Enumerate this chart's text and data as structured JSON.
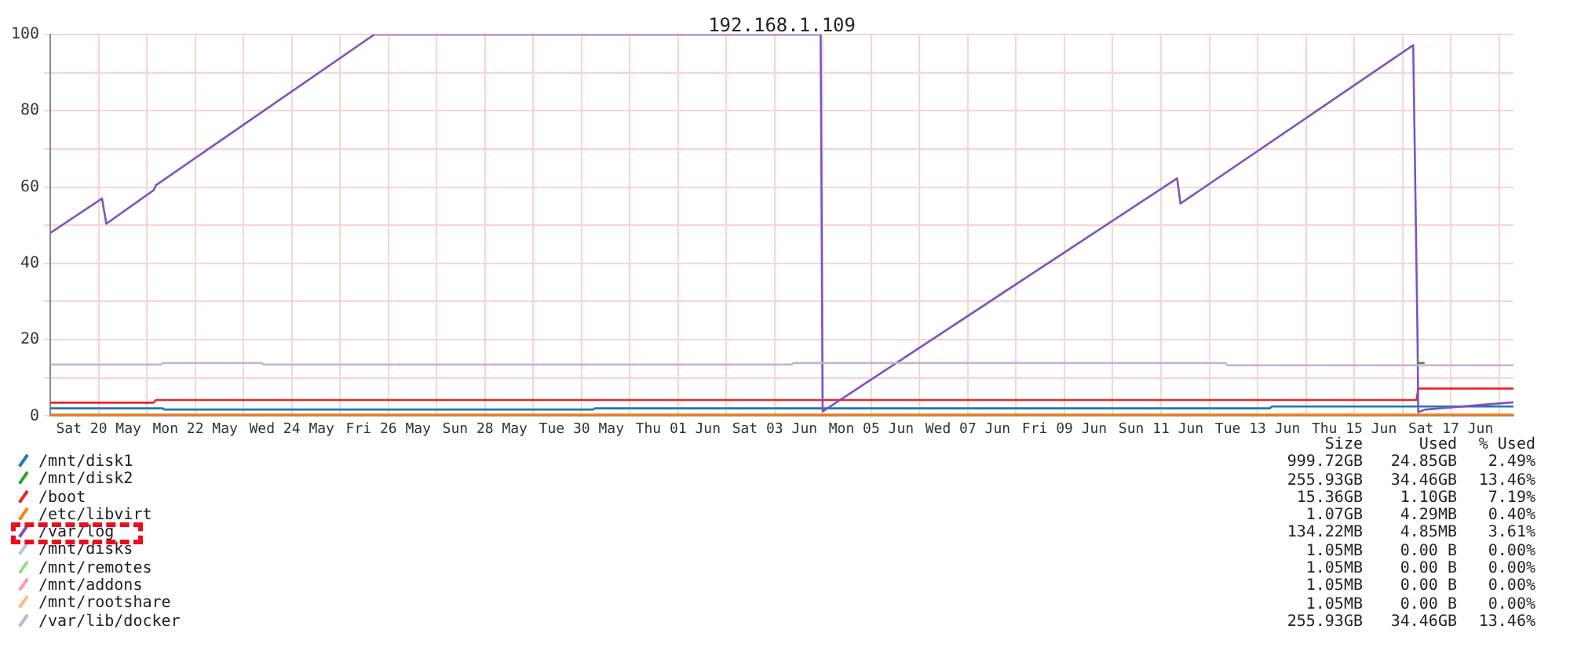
{
  "chart_data": {
    "type": "line",
    "title": "192.168.1.109",
    "xlim": [
      "--05-19",
      "--06-18T07:10"
    ],
    "ylim": [
      0,
      100
    ],
    "yticks": [
      0,
      {
        "value": 10,
        "label": null
      },
      20,
      {
        "value": 30,
        "label": null
      },
      40,
      {
        "value": 50,
        "label": null
      },
      60,
      {
        "value": 70,
        "label": null
      },
      80,
      {
        "value": 90,
        "label": null
      },
      100
    ],
    "xticks": [
      {
        "value": "--05-20",
        "label": "Sat 20 May"
      },
      {
        "value": "--05-21",
        "label": null
      },
      {
        "value": "--05-22",
        "label": "Mon 22 May"
      },
      {
        "value": "--05-23",
        "label": null
      },
      {
        "value": "--05-24",
        "label": "Wed 24 May"
      },
      {
        "value": "--05-25",
        "label": null
      },
      {
        "value": "--05-26",
        "label": "Fri 26 May"
      },
      {
        "value": "--05-27",
        "label": null
      },
      {
        "value": "--05-28",
        "label": "Sun 28 May"
      },
      {
        "value": "--05-29",
        "label": null
      },
      {
        "value": "--05-30",
        "label": "Tue 30 May"
      },
      {
        "value": "--05-31",
        "label": null
      },
      {
        "value": "--06-01",
        "label": "Thu 01 Jun"
      },
      {
        "value": "--06-02",
        "label": null
      },
      {
        "value": "--06-03",
        "label": "Sat 03 Jun"
      },
      {
        "value": "--06-04",
        "label": null
      },
      {
        "value": "--06-05",
        "label": "Mon 05 Jun"
      },
      {
        "value": "--06-06",
        "label": null
      },
      {
        "value": "--06-07",
        "label": "Wed 07 Jun"
      },
      {
        "value": "--06-08",
        "label": null
      },
      {
        "value": "--06-09",
        "label": "Fri 09 Jun"
      },
      {
        "value": "--06-10",
        "label": null
      },
      {
        "value": "--06-11",
        "label": "Sun 11 Jun"
      },
      {
        "value": "--06-12",
        "label": null
      },
      {
        "value": "--06-13",
        "label": "Tue 13 Jun"
      },
      {
        "value": "--06-14",
        "label": null
      },
      {
        "value": "--06-15",
        "label": "Thu 15 Jun"
      },
      {
        "value": "--06-16",
        "label": null
      },
      {
        "value": "--06-17",
        "label": "Sat 17 Jun"
      },
      {
        "value": "--06-18",
        "label": null
      }
    ],
    "grid": true,
    "legend": "bottom",
    "marker": "none",
    "line_style": "solid",
    "series": [
      {
        "name": "/mnt/disk1",
        "color": "#1f77b4",
        "x": [
          "--05-19",
          "--05-21T08:00",
          "--05-21T08:30",
          "--05-30T05:50",
          "--05-30T06:30",
          "--06-13T06:10",
          "--06-13T07:00",
          "--06-18T07:10"
        ],
        "values": [
          2.0,
          2.0,
          1.7,
          1.7,
          2.0,
          2.0,
          2.5,
          2.5
        ]
      },
      {
        "name": "/mnt/disk2",
        "color": "#2ca02c",
        "x": [
          "--06-16T07:30",
          "--06-16T11:00"
        ],
        "values": [
          13.9,
          13.9
        ]
      },
      {
        "name": "/boot",
        "color": "#e8262a",
        "x": [
          "--05-19",
          "--05-21T03:20",
          "--05-21T04:30",
          "--06-16T07:00",
          "--06-16T07:50",
          "--06-18T07:10"
        ],
        "values": [
          3.5,
          3.5,
          4.2,
          4.2,
          7.2,
          7.2
        ]
      },
      {
        "name": "/etc/libvirt",
        "color": "#ff7f0e",
        "x": [
          "--05-19",
          "--06-18T07:10"
        ],
        "values": [
          0.4,
          0.4
        ]
      },
      {
        "name": "/var/log",
        "color": "#7f52bf",
        "x": [
          "--05-19",
          "--05-20T01:40",
          "--05-20T03:50",
          "--05-21T03:20",
          "--05-21T04:30",
          "--05-25T17:00",
          "--06-03T22:50",
          "--06-03T23:50",
          "--06-11T08:00",
          "--06-11T09:40",
          "--06-16T05:20",
          "--06-16T07:30",
          "--06-16T07:50",
          "--06-16T11:20",
          "--06-18T07:10"
        ],
        "values": [
          48,
          57,
          50.4,
          59.2,
          60.5,
          100,
          100,
          1.2,
          62.3,
          55.7,
          97.2,
          19.8,
          1,
          1.7,
          3.6
        ]
      },
      {
        "name": "/mnt/disks",
        "color": "#aec7e8"
      },
      {
        "name": "/mnt/remotes",
        "color": "#98df8a"
      },
      {
        "name": "/mnt/addons",
        "color": "#ff9896"
      },
      {
        "name": "/mnt/rootshare",
        "color": "#ffbb78"
      },
      {
        "name": "/var/lib/docker",
        "color": "#c5b0d5",
        "x": [
          "--05-19",
          "--05-21T07:00",
          "--05-21T08:00",
          "--05-23T09:00",
          "--05-23T10:00",
          "--06-03T08:20",
          "--06-03T09:20",
          "--06-12T08:00",
          "--06-12T09:00",
          "--06-18T07:10"
        ],
        "values": [
          13.5,
          13.5,
          13.9,
          13.9,
          13.5,
          13.5,
          13.9,
          13.9,
          13.3,
          13.3
        ]
      }
    ],
    "annotations": [
      "Size",
      "Used",
      "% Used",
      "999.72GB",
      "24.85GB",
      "2.49%",
      "255.93GB",
      "34.46GB",
      "13.46%",
      "15.36GB",
      "1.10GB",
      "7.19%",
      "1.07GB",
      "4.29MB",
      "0.40%",
      "134.22MB",
      "4.85MB",
      "3.61%",
      "1.05MB",
      "0.00 B",
      "0.00%",
      "1.05MB",
      "0.00 B",
      "0.00%",
      "1.05MB",
      "0.00 B",
      "0.00%",
      "1.05MB",
      "0.00 B",
      "0.00%",
      "255.93GB",
      "34.46GB",
      "13.46%"
    ]
  }
}
